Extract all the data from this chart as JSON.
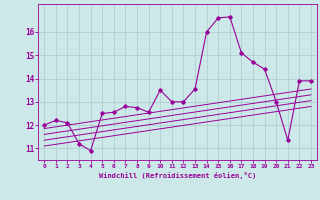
{
  "title": "",
  "xlabel": "Windchill (Refroidissement éolien,°C)",
  "ylabel": "",
  "background_color": "#cce8e8",
  "line_color": "#990099",
  "grid_color": "#aacccc",
  "xlim": [
    -0.5,
    23.5
  ],
  "ylim": [
    10.5,
    17.2
  ],
  "xticks": [
    0,
    1,
    2,
    3,
    4,
    5,
    6,
    7,
    8,
    9,
    10,
    11,
    12,
    13,
    14,
    15,
    16,
    17,
    18,
    19,
    20,
    21,
    22,
    23
  ],
  "yticks": [
    11,
    12,
    13,
    14,
    15,
    16
  ],
  "main_x": [
    0,
    1,
    2,
    3,
    4,
    5,
    6,
    7,
    8,
    9,
    10,
    11,
    12,
    13,
    14,
    15,
    16,
    17,
    18,
    19,
    20,
    21,
    22,
    23
  ],
  "main_y": [
    12.0,
    12.2,
    12.1,
    11.2,
    10.9,
    12.5,
    12.55,
    12.8,
    12.75,
    12.55,
    13.5,
    13.0,
    13.0,
    13.55,
    16.0,
    16.6,
    16.65,
    15.1,
    14.7,
    14.4,
    13.0,
    11.35,
    13.9,
    13.9
  ],
  "reg_lines": [
    {
      "x0": 0,
      "y0": 11.85,
      "x1": 23,
      "y1": 13.55
    },
    {
      "x0": 0,
      "y0": 11.6,
      "x1": 23,
      "y1": 13.3
    },
    {
      "x0": 0,
      "y0": 11.35,
      "x1": 23,
      "y1": 13.05
    },
    {
      "x0": 0,
      "y0": 11.1,
      "x1": 23,
      "y1": 12.8
    }
  ]
}
